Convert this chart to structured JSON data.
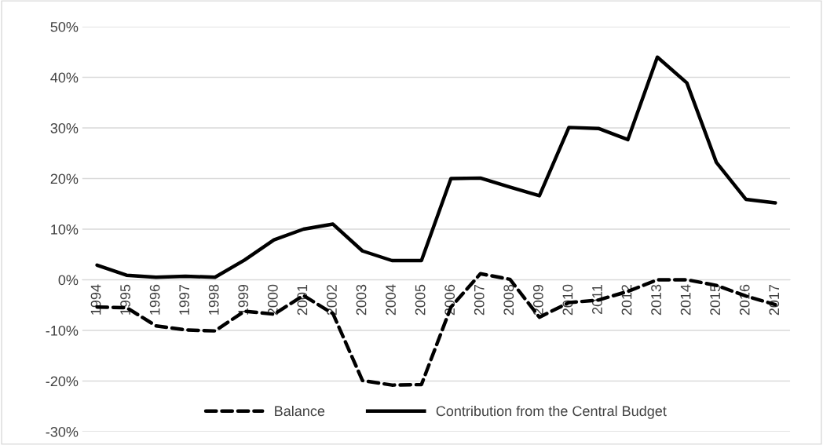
{
  "chart_data": {
    "type": "line",
    "categories": [
      "1994",
      "1995",
      "1996",
      "1997",
      "1998",
      "1999",
      "2000",
      "2001",
      "2002",
      "2003",
      "2004",
      "2005",
      "2006",
      "2007",
      "2008",
      "2009",
      "2010",
      "2011",
      "2012",
      "2013",
      "2014",
      "2015",
      "2016",
      "2017"
    ],
    "series": [
      {
        "name": "Balance",
        "color": "#000000",
        "line_style": "dashed",
        "values": [
          -5.4,
          -5.5,
          -9.1,
          -9.9,
          -10.1,
          -6.2,
          -6.8,
          -3.1,
          -6.7,
          -19.9,
          -20.8,
          -20.7,
          -5.4,
          1.2,
          0.1,
          -7.4,
          -4.5,
          -4.0,
          -2.3,
          0.0,
          0.0,
          -1.1,
          -3.2,
          -4.9
        ]
      },
      {
        "name": "Contribution from the Central Budget",
        "color": "#000000",
        "line_style": "solid",
        "values": [
          2.9,
          0.9,
          0.5,
          0.7,
          0.5,
          3.9,
          7.9,
          10.0,
          11.0,
          5.7,
          3.8,
          3.8,
          20.0,
          20.1,
          18.3,
          16.6,
          30.1,
          29.9,
          27.7,
          44.0,
          38.9,
          23.2,
          15.9,
          15.2
        ]
      }
    ],
    "ylim": [
      -30,
      50
    ],
    "yticks": [
      {
        "value": -30,
        "label": "-30%"
      },
      {
        "value": -20,
        "label": "-20%"
      },
      {
        "value": -10,
        "label": "-10%"
      },
      {
        "value": 0,
        "label": "0%"
      },
      {
        "value": 10,
        "label": "10%"
      },
      {
        "value": 20,
        "label": "20%"
      },
      {
        "value": 30,
        "label": "30%"
      },
      {
        "value": 40,
        "label": "40%"
      },
      {
        "value": 50,
        "label": "50%"
      }
    ],
    "grid": "y",
    "legend": "bottom",
    "marker": "none"
  }
}
